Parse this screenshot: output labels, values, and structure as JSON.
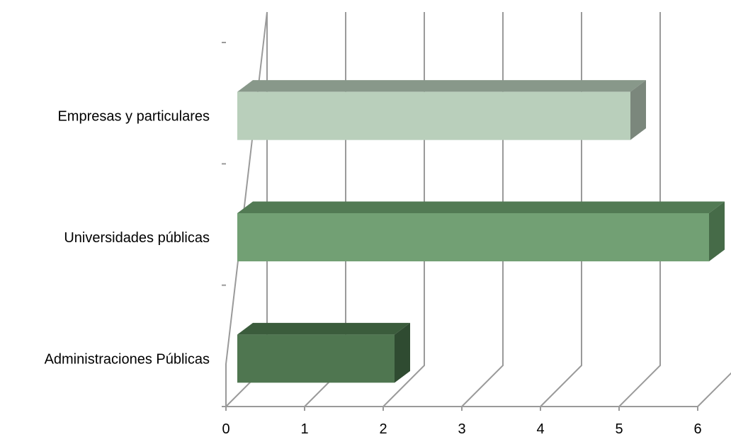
{
  "chart_data": {
    "type": "bar",
    "orientation": "horizontal",
    "style": "3d",
    "title": "",
    "xlabel": "",
    "ylabel": "",
    "categories": [
      "Administraciones Públicas",
      "Universidades públicas",
      "Empresas y particulares"
    ],
    "values": [
      2,
      6,
      5
    ],
    "xlim": [
      0,
      6
    ],
    "xticks": [
      "0",
      "1",
      "2",
      "3",
      "4",
      "5",
      "6"
    ],
    "grid": true,
    "legend": "none",
    "colors": [
      {
        "front": "#4f7650",
        "top": "#3b5c3c",
        "side": "#2f4b31"
      },
      {
        "front": "#72a074",
        "top": "#527a54",
        "side": "#466b48"
      },
      {
        "front": "#b9cfbb",
        "top": "#88988a",
        "side": "#7b877c"
      }
    ]
  }
}
